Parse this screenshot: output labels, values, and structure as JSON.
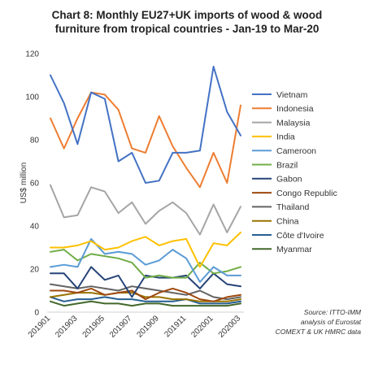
{
  "chart_data": {
    "type": "line",
    "title_lines": [
      "Chart 8: Monthly EU27+UK imports of wood & wood",
      "furniture from tropical countries - Jan-19 to Mar-20"
    ],
    "ylabel": "US$ million",
    "xlabel": "",
    "ylim": [
      0,
      120
    ],
    "yticks": [
      0,
      20,
      40,
      60,
      80,
      100,
      120
    ],
    "grid": false,
    "legend_position": "right",
    "x": [
      "201901",
      "201902",
      "201903",
      "201904",
      "201905",
      "201906",
      "201907",
      "201908",
      "201909",
      "201910",
      "201911",
      "201912",
      "202001",
      "202002",
      "202003"
    ],
    "xtick_labels": [
      "201901",
      "201903",
      "201905",
      "201907",
      "201909",
      "201911",
      "202001",
      "202003"
    ],
    "series": [
      {
        "name": "Vietnam",
        "color": "#4472c4",
        "values": [
          110,
          97,
          78,
          102,
          99,
          70,
          74,
          60,
          61,
          74,
          74,
          75,
          114,
          93,
          82
        ]
      },
      {
        "name": "Indonesia",
        "color": "#ed7d31",
        "values": [
          90,
          76,
          90,
          102,
          101,
          94,
          76,
          74,
          91,
          77,
          67,
          58,
          74,
          60,
          96
        ]
      },
      {
        "name": "Malaysia",
        "color": "#a5a5a5",
        "values": [
          59,
          44,
          45,
          58,
          56,
          46,
          51,
          41,
          47,
          51,
          46,
          36,
          50,
          37,
          49
        ]
      },
      {
        "name": "India",
        "color": "#ffc000",
        "values": [
          30,
          30,
          31,
          33,
          29,
          30,
          33,
          35,
          31,
          33,
          34,
          21,
          32,
          31,
          37
        ]
      },
      {
        "name": "Cameroon",
        "color": "#5b9bd5",
        "values": [
          21,
          22,
          21,
          34,
          27,
          28,
          27,
          22,
          24,
          29,
          25,
          14,
          21,
          17,
          17
        ]
      },
      {
        "name": "Brazil",
        "color": "#70ad47",
        "values": [
          28,
          29,
          24,
          27,
          26,
          25,
          23,
          16,
          17,
          16,
          16,
          23,
          18,
          19,
          21
        ]
      },
      {
        "name": "Gabon",
        "color": "#264478",
        "values": [
          18,
          18,
          11,
          21,
          15,
          17,
          7,
          17,
          16,
          16,
          17,
          11,
          18,
          13,
          12
        ]
      },
      {
        "name": "Congo Republic",
        "color": "#9e480e",
        "values": [
          10,
          10,
          9,
          11,
          8,
          9,
          10,
          6,
          9,
          11,
          9,
          6,
          5,
          7,
          8
        ]
      },
      {
        "name": "Thailand",
        "color": "#636363",
        "values": [
          13,
          12,
          11,
          12,
          11,
          10,
          12,
          11,
          10,
          9,
          8,
          10,
          7,
          6,
          7
        ]
      },
      {
        "name": "China",
        "color": "#997300",
        "values": [
          7,
          8,
          9,
          9,
          8,
          9,
          9,
          7,
          7,
          6,
          6,
          5,
          5,
          5,
          6
        ]
      },
      {
        "name": "Côte d'Ivoire",
        "color": "#255e91",
        "values": [
          7,
          5,
          6,
          6,
          7,
          6,
          6,
          5,
          5,
          5,
          6,
          4,
          4,
          4,
          5
        ]
      },
      {
        "name": "Myanmar",
        "color": "#43682b",
        "values": [
          5,
          3,
          4,
          5,
          4,
          4,
          3,
          4,
          4,
          3,
          3,
          3,
          3,
          3,
          4
        ]
      }
    ],
    "annotation_lines": [
      "Source: ITTO-IMM",
      "analysis of Eurostat",
      "COMEXT & UK HMRC data"
    ]
  }
}
